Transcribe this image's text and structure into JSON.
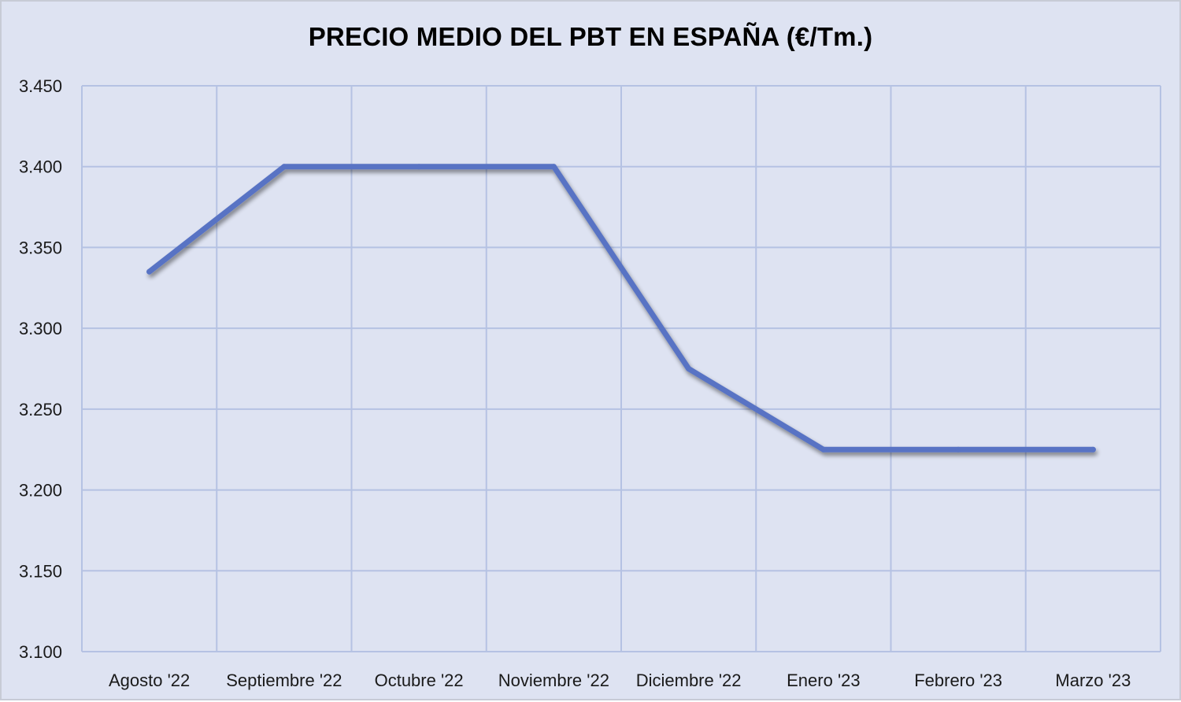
{
  "chart_data": {
    "type": "line",
    "title": "PRECIO MEDIO DEL PBT EN ESPAÑA (€/Tm.)",
    "categories": [
      "Agosto '22",
      "Septiembre '22",
      "Octubre '22",
      "Noviembre '22",
      "Diciembre '22",
      "Enero '23",
      "Febrero '23",
      "Marzo '23"
    ],
    "series": [
      {
        "values": [
          3335,
          3400,
          3400,
          3400,
          3275,
          3225,
          3225,
          3225
        ],
        "color": "#5873c4"
      }
    ],
    "xlabel": "",
    "ylabel": "",
    "ylim": [
      3100,
      3450
    ],
    "yticks": [
      "3.100",
      "3.150",
      "3.200",
      "3.250",
      "3.300",
      "3.350",
      "3.400",
      "3.450"
    ],
    "grid": true,
    "legend": "none"
  },
  "colors": {
    "background": "#dee3f2",
    "gridline": "#b5c2e3",
    "line": "#5873c4"
  }
}
